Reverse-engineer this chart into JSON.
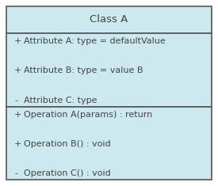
{
  "title": "Class A",
  "bg_color": "#cce9f0",
  "border_color": "#555555",
  "text_color": "#444444",
  "white_bg": "#ffffff",
  "attributes": [
    {
      "sign": "+",
      "text": "Attribute A: type = defaultValue"
    },
    {
      "sign": "+",
      "text": "Attribute B: type = value B"
    },
    {
      "sign": "-",
      "text": "Attribute C: type"
    }
  ],
  "operations": [
    {
      "sign": "+",
      "text": "Operation A(params) : return"
    },
    {
      "sign": "+",
      "text": "Operation B() : void"
    },
    {
      "sign": "-",
      "text": "Operation C() : void"
    }
  ],
  "title_fontsize": 9.5,
  "body_fontsize": 8.0,
  "fig_width": 2.75,
  "fig_height": 2.35,
  "dpi": 100
}
